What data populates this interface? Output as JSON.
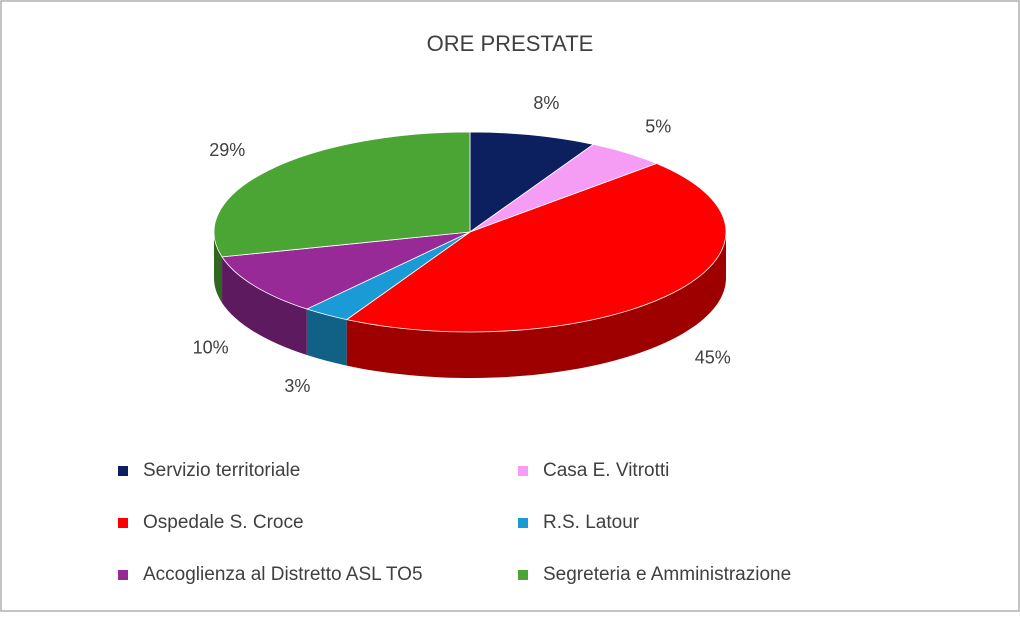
{
  "chart_data": {
    "type": "pie3d",
    "title": "ORE PRESTATE",
    "categories": [
      "Servizio territoriale",
      "Casa E. Vitrotti",
      "Ospedale S. Croce",
      "R.S. Latour",
      "Accoglienza al Distretto ASL TO5",
      "Segreteria e Amministrazione"
    ],
    "values": [
      8,
      5,
      45,
      3,
      10,
      29
    ],
    "value_labels": [
      "8%",
      "5%",
      "45%",
      "3%",
      "10%",
      "29%"
    ],
    "colors": [
      "#0c1f5e",
      "#f59cf5",
      "#ff0000",
      "#1b9bd6",
      "#982a98",
      "#4ba534"
    ]
  }
}
